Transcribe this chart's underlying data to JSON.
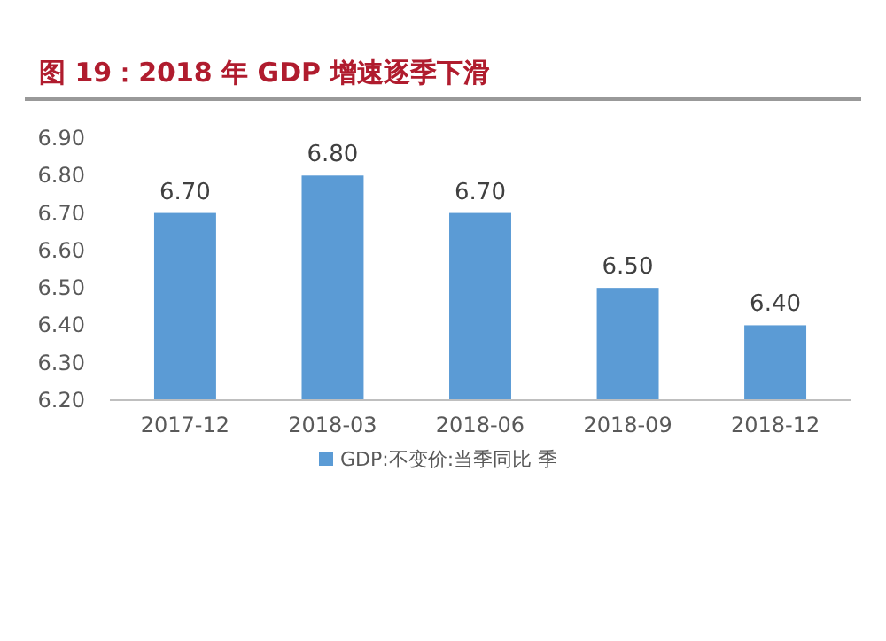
{
  "chart_data": {
    "type": "bar",
    "title": "图 19：2018 年 GDP 增速逐季下滑",
    "categories": [
      "2017-12",
      "2018-03",
      "2018-06",
      "2018-09",
      "2018-12"
    ],
    "series": [
      {
        "name": "GDP:不变价:当季同比 季",
        "color": "#5b9bd5",
        "values": [
          6.7,
          6.8,
          6.7,
          6.5,
          6.4
        ],
        "value_labels": [
          "6.70",
          "6.80",
          "6.70",
          "6.50",
          "6.40"
        ]
      }
    ],
    "ylim": [
      6.2,
      6.9
    ],
    "yticks": [
      {
        "value": 6.2,
        "label": "6.20"
      },
      {
        "value": 6.3,
        "label": "6.30"
      },
      {
        "value": 6.4,
        "label": "6.40"
      },
      {
        "value": 6.5,
        "label": "6.50"
      },
      {
        "value": 6.6,
        "label": "6.60"
      },
      {
        "value": 6.7,
        "label": "6.70"
      },
      {
        "value": 6.8,
        "label": "6.80"
      },
      {
        "value": 6.9,
        "label": "6.90"
      }
    ],
    "grid": false,
    "legend": "bottom"
  }
}
